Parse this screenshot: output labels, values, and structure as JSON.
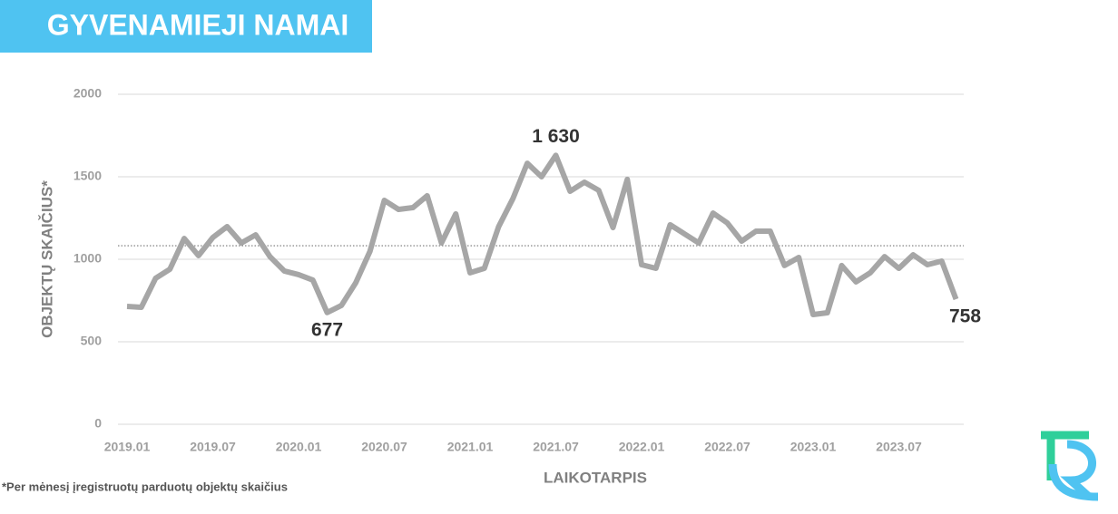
{
  "chart_data": {
    "type": "line",
    "title": "GYVENAMIEJI NAMAI",
    "ylabel": "OBJEKTŲ SKAIČIUS*",
    "xlabel": "LAIKOTARPIS",
    "footnote": "*Per mėnesį įregistruotų parduotų objektų skaičius",
    "categories": [
      "2019.01",
      null,
      null,
      null,
      null,
      null,
      "2019.07",
      null,
      null,
      null,
      null,
      null,
      "2020.01",
      null,
      null,
      null,
      null,
      null,
      "2020.07",
      null,
      null,
      null,
      null,
      null,
      "2021.01",
      null,
      null,
      null,
      null,
      null,
      "2021.07",
      null,
      null,
      null,
      null,
      null,
      "2022.01",
      null,
      null,
      null,
      null,
      null,
      "2022.07",
      null,
      null,
      null,
      null,
      null,
      "2023.01",
      null,
      null,
      null,
      null,
      null,
      "2023.07",
      null,
      null,
      null,
      null
    ],
    "series": [
      {
        "color": "#a6a6a6",
        "values": [
          714,
          709,
          885,
          940,
          1126,
          1022,
          1132,
          1198,
          1099,
          1148,
          1016,
          929,
          907,
          874,
          677,
          720,
          857,
          1049,
          1357,
          1302,
          1313,
          1385,
          1099,
          1275,
          918,
          945,
          1198,
          1368,
          1582,
          1500,
          1630,
          1412,
          1467,
          1418,
          1192,
          1484,
          967,
          945,
          1209,
          1154,
          1099,
          1280,
          1220,
          1110,
          1170,
          1170,
          962,
          1011,
          665,
          676,
          962,
          863,
          918,
          1016,
          945,
          1027,
          967,
          989,
          758
        ],
        "value_labels": [
          null,
          null,
          null,
          null,
          null,
          null,
          null,
          null,
          null,
          null,
          null,
          null,
          null,
          null,
          "677",
          null,
          null,
          null,
          null,
          null,
          null,
          null,
          null,
          null,
          null,
          null,
          null,
          null,
          null,
          null,
          "1 630",
          null,
          null,
          null,
          null,
          null,
          null,
          null,
          null,
          null,
          null,
          null,
          null,
          null,
          null,
          null,
          null,
          null,
          null,
          null,
          null,
          null,
          null,
          null,
          null,
          null,
          null,
          null,
          "758"
        ]
      }
    ],
    "reference_line": 1082,
    "ylim": [
      0,
      2000
    ],
    "yticks": [
      0,
      500,
      1000,
      1500,
      2000
    ],
    "grid": true
  }
}
